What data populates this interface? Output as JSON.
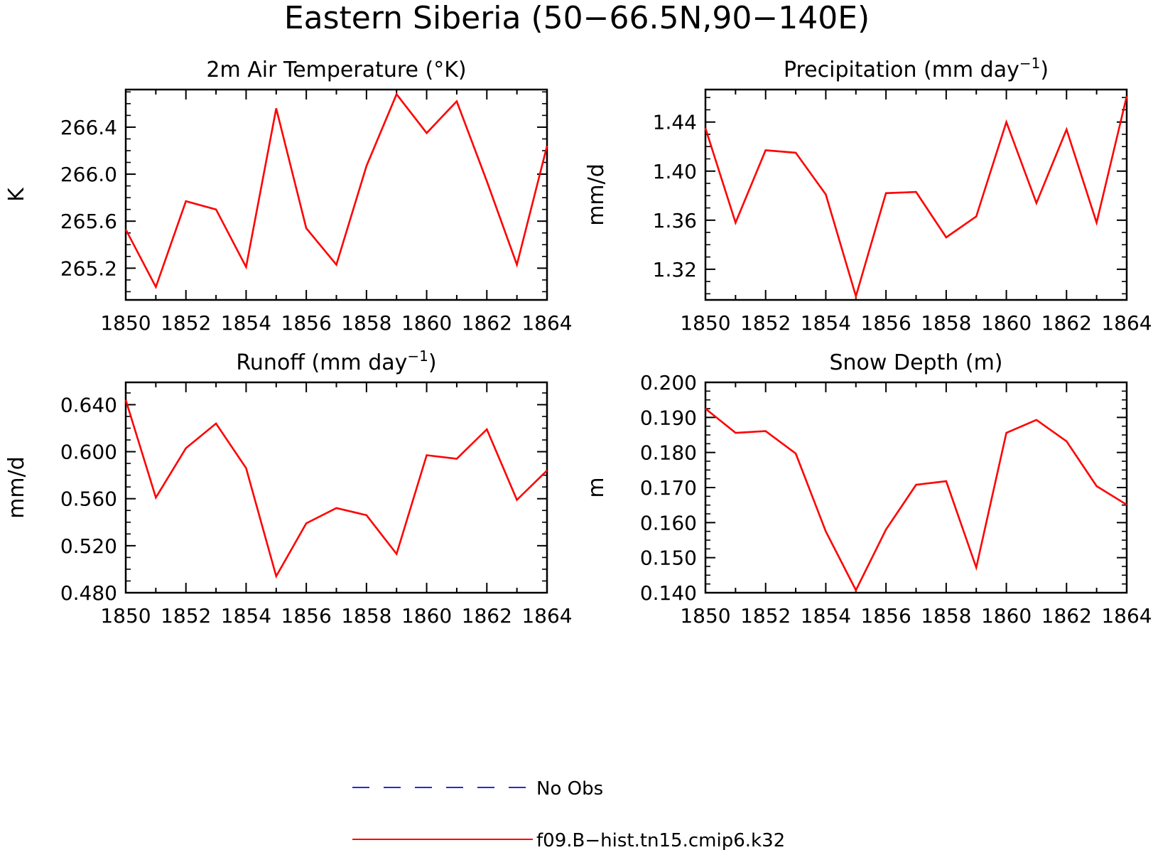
{
  "figure": {
    "title": "Eastern Siberia (50−66.5N,90−140E)",
    "legend": {
      "placement": "bottom-center",
      "entries": [
        {
          "label": "No Obs",
          "color": "#1f2fd6",
          "style": "dashed"
        },
        {
          "label": "f09.B−hist.tn15.cmip6.k32",
          "color": "#ff0000",
          "style": "solid"
        }
      ]
    }
  },
  "chart_data": [
    {
      "type": "line",
      "title": "2m Air Temperature (°K)",
      "title_superscript": "",
      "title_suffix": "",
      "ylabel": "K",
      "x": [
        1850,
        1851,
        1852,
        1853,
        1854,
        1855,
        1856,
        1857,
        1858,
        1859,
        1860,
        1861,
        1862,
        1863,
        1864
      ],
      "series": [
        {
          "name": "f09.B−hist.tn15.cmip6.k32",
          "color": "#ff0000",
          "values": [
            265.53,
            265.04,
            265.77,
            265.7,
            265.21,
            266.56,
            265.54,
            265.23,
            266.07,
            266.68,
            266.35,
            266.62,
            265.94,
            265.23,
            266.24
          ]
        }
      ],
      "xlim": [
        1850,
        1864
      ],
      "ylim": [
        264.93,
        266.72
      ],
      "xticks": [
        "1850",
        "1852",
        "1854",
        "1856",
        "1858",
        "1860",
        "1862",
        "1864"
      ],
      "xtick_values": [
        1850,
        1852,
        1854,
        1856,
        1858,
        1860,
        1862,
        1864
      ],
      "yticks": [
        "265.2",
        "265.6",
        "266.0",
        "266.4"
      ],
      "ytick_values": [
        265.2,
        265.6,
        266.0,
        266.4
      ],
      "minor_step": 0.1
    },
    {
      "type": "line",
      "title": "Precipitation (mm day",
      "title_superscript": "−1",
      "title_suffix": ")",
      "ylabel": "mm/d",
      "x": [
        1850,
        1851,
        1852,
        1853,
        1854,
        1855,
        1856,
        1857,
        1858,
        1859,
        1860,
        1861,
        1862,
        1863,
        1864
      ],
      "series": [
        {
          "name": "f09.B−hist.tn15.cmip6.k32",
          "color": "#ff0000",
          "values": [
            1.435,
            1.358,
            1.417,
            1.415,
            1.381,
            1.298,
            1.382,
            1.383,
            1.346,
            1.363,
            1.44,
            1.374,
            1.434,
            1.358,
            1.461
          ]
        }
      ],
      "xlim": [
        1850,
        1864
      ],
      "ylim": [
        1.295,
        1.4665
      ],
      "xticks": [
        "1850",
        "1852",
        "1854",
        "1856",
        "1858",
        "1860",
        "1862",
        "1864"
      ],
      "xtick_values": [
        1850,
        1852,
        1854,
        1856,
        1858,
        1860,
        1862,
        1864
      ],
      "yticks": [
        "1.32",
        "1.36",
        "1.40",
        "1.44"
      ],
      "ytick_values": [
        1.32,
        1.36,
        1.4,
        1.44
      ],
      "minor_step": 0.01
    },
    {
      "type": "line",
      "title": "Runoff (mm day",
      "title_superscript": "−1",
      "title_suffix": ")",
      "ylabel": "mm/d",
      "x": [
        1850,
        1851,
        1852,
        1853,
        1854,
        1855,
        1856,
        1857,
        1858,
        1859,
        1860,
        1861,
        1862,
        1863,
        1864
      ],
      "series": [
        {
          "name": "f09.B−hist.tn15.cmip6.k32",
          "color": "#ff0000",
          "values": [
            0.644,
            0.561,
            0.603,
            0.624,
            0.586,
            0.494,
            0.539,
            0.552,
            0.546,
            0.513,
            0.597,
            0.594,
            0.619,
            0.559,
            0.584
          ]
        }
      ],
      "xlim": [
        1850,
        1864
      ],
      "ylim": [
        0.48,
        0.659
      ],
      "xticks": [
        "1850",
        "1852",
        "1854",
        "1856",
        "1858",
        "1860",
        "1862",
        "1864"
      ],
      "xtick_values": [
        1850,
        1852,
        1854,
        1856,
        1858,
        1860,
        1862,
        1864
      ],
      "yticks": [
        "0.480",
        "0.520",
        "0.560",
        "0.600",
        "0.640"
      ],
      "ytick_values": [
        0.48,
        0.52,
        0.56,
        0.6,
        0.64
      ],
      "minor_step": 0.01
    },
    {
      "type": "line",
      "title": "Snow Depth (m)",
      "title_superscript": "",
      "title_suffix": "",
      "ylabel": "m",
      "x": [
        1850,
        1851,
        1852,
        1853,
        1854,
        1855,
        1856,
        1857,
        1858,
        1859,
        1860,
        1861,
        1862,
        1863,
        1864
      ],
      "series": [
        {
          "name": "f09.B−hist.tn15.cmip6.k32",
          "color": "#ff0000",
          "values": [
            0.1925,
            0.1856,
            0.1861,
            0.1797,
            0.1575,
            0.1407,
            0.158,
            0.1708,
            0.1718,
            0.1472,
            0.1856,
            0.1893,
            0.1832,
            0.1704,
            0.1651
          ]
        }
      ],
      "xlim": [
        1850,
        1864
      ],
      "ylim": [
        0.14,
        0.2
      ],
      "xticks": [
        "1850",
        "1852",
        "1854",
        "1856",
        "1858",
        "1860",
        "1862",
        "1864"
      ],
      "xtick_values": [
        1850,
        1852,
        1854,
        1856,
        1858,
        1860,
        1862,
        1864
      ],
      "yticks": [
        "0.140",
        "0.150",
        "0.160",
        "0.170",
        "0.180",
        "0.190",
        "0.200"
      ],
      "ytick_values": [
        0.14,
        0.15,
        0.16,
        0.17,
        0.18,
        0.19,
        0.2
      ],
      "minor_step": 0.0025
    }
  ]
}
